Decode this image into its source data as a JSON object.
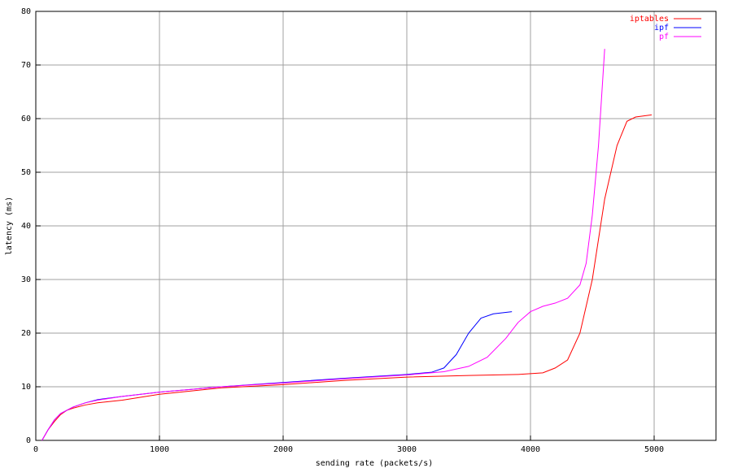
{
  "chart_data": {
    "type": "line",
    "xlabel": "sending rate (packets/s)",
    "ylabel": "latency (ms)",
    "xlim": [
      0,
      5500
    ],
    "ylim": [
      0,
      80
    ],
    "xticks": [
      0,
      1000,
      2000,
      3000,
      4000,
      5000
    ],
    "yticks": [
      0,
      10,
      20,
      30,
      40,
      50,
      60,
      70,
      80
    ],
    "grid": true,
    "legend": "top-right",
    "series": [
      {
        "name": "iptables",
        "color": "#ff0000",
        "x": [
          50,
          100,
          150,
          200,
          250,
          300,
          400,
          500,
          700,
          1000,
          1500,
          2000,
          2500,
          3000,
          3500,
          3900,
          4100,
          4200,
          4300,
          4400,
          4500,
          4600,
          4700,
          4780,
          4850,
          4980
        ],
        "values": [
          0,
          2,
          3.5,
          4.8,
          5.6,
          6,
          6.6,
          7,
          7.5,
          8.6,
          9.8,
          10.4,
          11.2,
          11.8,
          12.1,
          12.3,
          12.6,
          13.5,
          15,
          20,
          30,
          45,
          55,
          59.5,
          60.3,
          60.7
        ]
      },
      {
        "name": "ipf",
        "color": "#0000ff",
        "x": [
          50,
          100,
          150,
          200,
          300,
          400,
          500,
          700,
          1000,
          1500,
          2000,
          2500,
          3000,
          3200,
          3300,
          3400,
          3500,
          3600,
          3700,
          3850
        ],
        "values": [
          0,
          2,
          3.8,
          5,
          6.2,
          7,
          7.6,
          8.2,
          9,
          10,
          10.8,
          11.6,
          12.3,
          12.7,
          13.5,
          16,
          20,
          22.8,
          23.6,
          24
        ]
      },
      {
        "name": "pf",
        "color": "#ff00ff",
        "x": [
          50,
          100,
          150,
          200,
          300,
          400,
          500,
          700,
          1000,
          1500,
          2000,
          2500,
          3000,
          3300,
          3500,
          3650,
          3800,
          3900,
          4000,
          4100,
          4200,
          4300,
          4400,
          4450,
          4500,
          4550,
          4600
        ],
        "values": [
          0,
          2,
          3.8,
          5,
          6.2,
          7,
          7.5,
          8.2,
          9,
          10,
          10.7,
          11.5,
          12.2,
          12.8,
          13.8,
          15.5,
          19,
          22,
          24,
          25,
          25.6,
          26.5,
          29,
          33,
          42,
          55,
          73
        ]
      }
    ]
  }
}
